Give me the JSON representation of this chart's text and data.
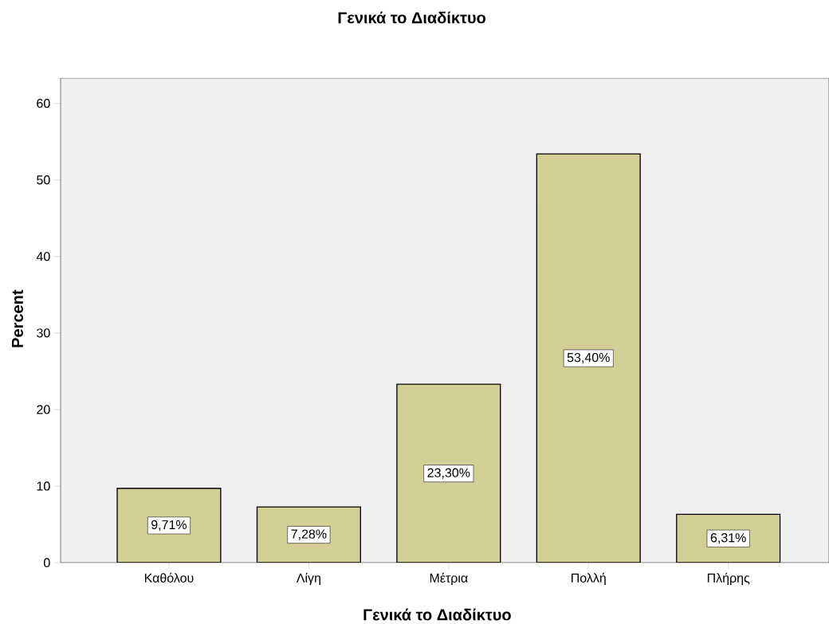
{
  "chart_data": {
    "type": "bar",
    "title": "Γενικά το Διαδίκτυο",
    "xlabel": "Γενικά το Διαδίκτυο",
    "ylabel": "Percent",
    "categories": [
      "Καθόλου",
      "Λίγη",
      "Μέτρια",
      "Πολλή",
      "Πλήρης"
    ],
    "values": [
      9.71,
      7.28,
      23.3,
      53.4,
      6.31
    ],
    "value_labels": [
      "9,71%",
      "7,28%",
      "23,30%",
      "53,40%",
      "6,31%"
    ],
    "color": "#d3ce96",
    "ylim": [
      0,
      63.3
    ],
    "yticks": [
      0,
      10,
      20,
      30,
      40,
      50,
      60
    ],
    "grid": false
  }
}
